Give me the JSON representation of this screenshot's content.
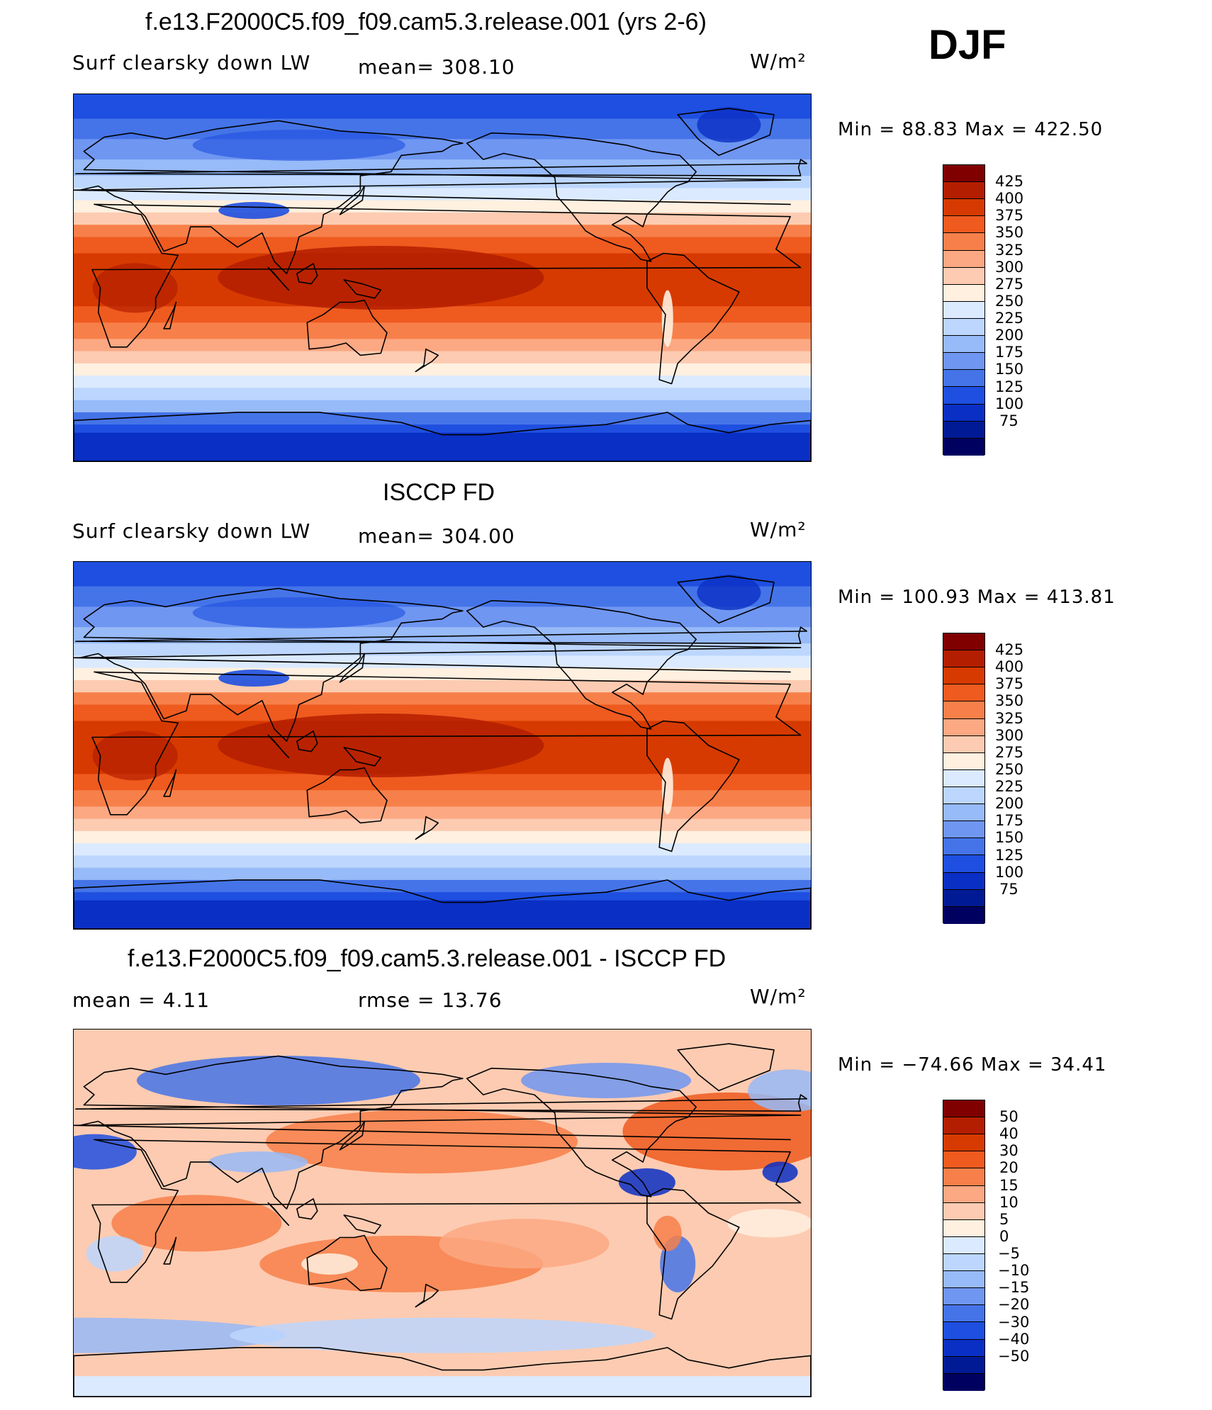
{
  "season": "DJF",
  "panels": [
    {
      "title": "f.e13.F2000C5.f09_f09.cam5.3.release.001 (yrs 2-6)",
      "left_label": "Surf clearsky down LW",
      "center_label": "mean=  308.10",
      "units": "W/m²",
      "minmax": "Min  =    88.83  Max  =  422.50",
      "scale": "absolute"
    },
    {
      "title": "ISCCP FD",
      "left_label": "Surf clearsky down LW",
      "center_label": "mean=  304.00",
      "units": "W/m²",
      "minmax": "Min  =  100.93  Max  =  413.81",
      "scale": "absolute"
    },
    {
      "title": "f.e13.F2000C5.f09_f09.cam5.3.release.001 - ISCCP FD",
      "left_label": "mean  =     4.11",
      "center_label": "rmse  =    13.76",
      "units": "W/m²",
      "minmax": "Min  = −74.66  Max  =    34.41",
      "scale": "difference"
    }
  ],
  "chart_data": [
    {
      "type": "heatmap",
      "title": "f.e13.F2000C5.f09_f09.cam5.3.release.001 (yrs 2-6)",
      "variable": "Surf clearsky down LW",
      "units": "W/m²",
      "mean": 308.1,
      "min": 88.83,
      "max": 422.5,
      "colorbar_levels": [
        "425",
        "400",
        "375",
        "350",
        "325",
        "300",
        "275",
        "250",
        "225",
        "200",
        "175",
        "150",
        "125",
        "100",
        "75"
      ],
      "colorbar_colors": [
        "#800000",
        "#b41e00",
        "#d63a00",
        "#ef5a1f",
        "#f7804a",
        "#fca883",
        "#fdcbb1",
        "#fff0e0",
        "#dbeaff",
        "#bcd6fd",
        "#97baf8",
        "#6f96f1",
        "#4574e8",
        "#1e4fe0",
        "#0a2fc4",
        "#001a96",
        "#000060"
      ]
    },
    {
      "type": "heatmap",
      "title": "ISCCP FD",
      "variable": "Surf clearsky down LW",
      "units": "W/m²",
      "mean": 304.0,
      "min": 100.93,
      "max": 413.81,
      "colorbar_levels": [
        "425",
        "400",
        "375",
        "350",
        "325",
        "300",
        "275",
        "250",
        "225",
        "200",
        "175",
        "150",
        "125",
        "100",
        "75"
      ],
      "colorbar_colors": [
        "#800000",
        "#b41e00",
        "#d63a00",
        "#ef5a1f",
        "#f7804a",
        "#fca883",
        "#fdcbb1",
        "#fff0e0",
        "#dbeaff",
        "#bcd6fd",
        "#97baf8",
        "#6f96f1",
        "#4574e8",
        "#1e4fe0",
        "#0a2fc4",
        "#001a96",
        "#000060"
      ]
    },
    {
      "type": "heatmap",
      "title": "f.e13.F2000C5.f09_f09.cam5.3.release.001 - ISCCP FD",
      "units": "W/m²",
      "mean": 4.11,
      "rmse": 13.76,
      "min": -74.66,
      "max": 34.41,
      "colorbar_levels": [
        "50",
        "40",
        "30",
        "20",
        "15",
        "10",
        "5",
        "0",
        "−5",
        "−10",
        "−15",
        "−20",
        "−30",
        "−40",
        "−50"
      ],
      "colorbar_colors": [
        "#800000",
        "#b41e00",
        "#d63a00",
        "#ef5a1f",
        "#f7804a",
        "#fca883",
        "#fdcbb1",
        "#fff0e0",
        "#dbeaff",
        "#bcd6fd",
        "#97baf8",
        "#6f96f1",
        "#4574e8",
        "#1e4fe0",
        "#0a2fc4",
        "#001a96",
        "#000060"
      ]
    }
  ]
}
